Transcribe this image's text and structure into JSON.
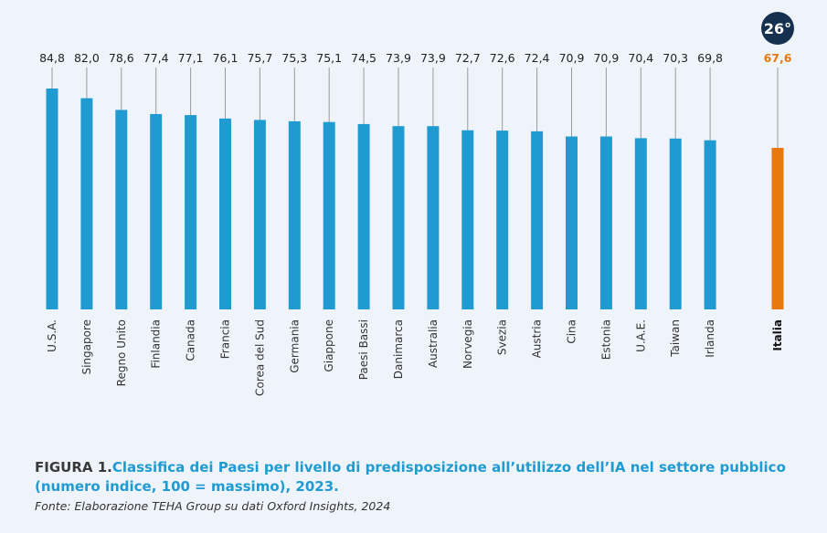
{
  "figure": {
    "prefix": "FIGURA 1.",
    "title_line1": "Classifica dei Paesi per livello di predisposizione all’utilizzo dell’IA nel settore pubblico",
    "title_line2": "(numero indice, 100 = massimo), 2023.",
    "source": "Fonte: Elaborazione TEHA Group su dati Oxford Insights, 2024"
  },
  "colors": {
    "bar": "#1f9bd1",
    "highlight_bar": "#e8790e",
    "highlight_label": "#e8790e",
    "badge_bg": "#16304f",
    "badge_text": "#ffffff",
    "leader_line": "#9a9a9a",
    "value_text": "#222222",
    "category_text": "#333333"
  },
  "chart_data": {
    "type": "bar",
    "categories": [
      "U.S.A.",
      "Singapore",
      "Regno Unito",
      "Finlandia",
      "Canada",
      "Francia",
      "Corea del Sud",
      "Germania",
      "Giappone",
      "Paesi Bassi",
      "Danimarca",
      "Australia",
      "Norvegia",
      "Svezia",
      "Austria",
      "Cina",
      "Estonia",
      "U.A.E.",
      "Taiwan",
      "Irlanda"
    ],
    "values": [
      84.8,
      82.0,
      78.6,
      77.4,
      77.1,
      76.1,
      75.7,
      75.3,
      75.1,
      74.5,
      73.9,
      73.9,
      72.7,
      72.6,
      72.4,
      70.9,
      70.9,
      70.4,
      70.3,
      69.8
    ],
    "value_labels": [
      "84,8",
      "82,0",
      "78,6",
      "77,4",
      "77,1",
      "76,1",
      "75,7",
      "75,3",
      "75,1",
      "74,5",
      "73,9",
      "73,9",
      "72,7",
      "72,6",
      "72,4",
      "70,9",
      "70,9",
      "70,4",
      "70,3",
      "69,8"
    ],
    "highlight": {
      "category": "Italia",
      "value": 67.6,
      "value_label": "67,6",
      "rank_badge": "26°"
    },
    "ylim": [
      0,
      100
    ],
    "grid": false,
    "legend": "none"
  }
}
